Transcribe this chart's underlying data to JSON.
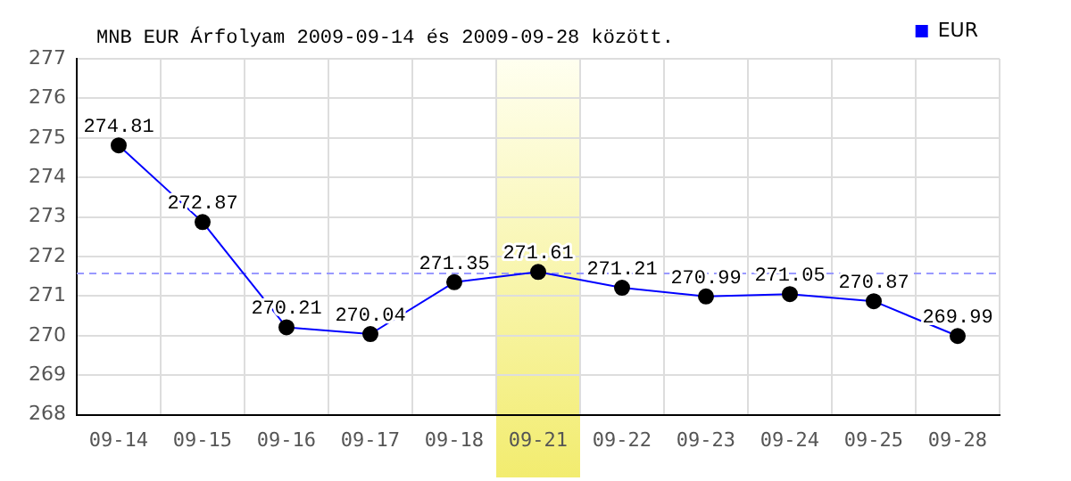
{
  "chart_data": {
    "type": "line",
    "title": "MNB EUR Árfolyam 2009-09-14 és 2009-09-28 között.",
    "categories": [
      "09-14",
      "09-15",
      "09-16",
      "09-17",
      "09-18",
      "09-21",
      "09-22",
      "09-23",
      "09-24",
      "09-25",
      "09-28"
    ],
    "series": [
      {
        "name": "EUR",
        "color": "#0000ff",
        "values": [
          274.81,
          272.87,
          270.21,
          270.04,
          271.35,
          271.61,
          271.21,
          270.99,
          271.05,
          270.87,
          269.99
        ]
      }
    ],
    "ylim": [
      268,
      277
    ],
    "yticks": [
      268,
      269,
      270,
      271,
      272,
      273,
      274,
      275,
      276,
      277
    ],
    "grid": true,
    "legend": "top right",
    "marker": "circle",
    "line_style": "solid",
    "data_labels": true,
    "ref_lines": [
      {
        "axis": "y",
        "value": 271.6,
        "color": "#9999ff",
        "line_style": "dashed"
      }
    ],
    "bands": [
      {
        "axis": "x",
        "from": "09-21",
        "to": "09-21",
        "color": "#f2ec6e"
      }
    ]
  }
}
